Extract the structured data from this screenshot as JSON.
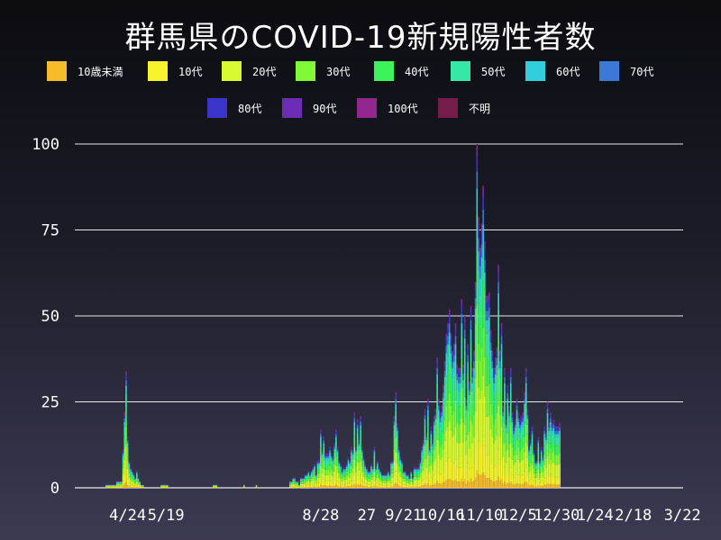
{
  "chart_data": {
    "type": "bar",
    "stacked": true,
    "title": "群馬県のCOVID-19新規陽性者数",
    "xlabel": "",
    "ylabel": "",
    "ylim": [
      0,
      100
    ],
    "y_ticks": [
      0,
      25,
      50,
      75,
      100
    ],
    "grid": true,
    "legend_position": "top",
    "x_tick_labels": [
      "4/24",
      "5/19",
      "8/28",
      "27",
      "9/21",
      "10/16",
      "11/10",
      "12/5",
      "12/30",
      "1/24",
      "2/18",
      "3/22"
    ],
    "x_tick_days": [
      34,
      59,
      160,
      190,
      214,
      239,
      264,
      289,
      314,
      339,
      364,
      396
    ],
    "x_start": "3/21",
    "day_count": 397,
    "series": [
      {
        "name": "10歳未満",
        "color": "#f6bc2a"
      },
      {
        "name": "10代",
        "color": "#f7f42c"
      },
      {
        "name": "20代",
        "color": "#d8fb30"
      },
      {
        "name": "30代",
        "color": "#7ffa36"
      },
      {
        "name": "40代",
        "color": "#3cf35a"
      },
      {
        "name": "50代",
        "color": "#35e8a6"
      },
      {
        "name": "60代",
        "color": "#31cfdb"
      },
      {
        "name": "70代",
        "color": "#3a79d6"
      },
      {
        "name": "80代",
        "color": "#3c33c8"
      },
      {
        "name": "90代",
        "color": "#6d2cb4"
      },
      {
        "name": "100代",
        "color": "#92268f"
      },
      {
        "name": "不明",
        "color": "#741c4a"
      }
    ],
    "daily_totals_approx": [
      [
        20,
        1
      ],
      [
        25,
        1
      ],
      [
        27,
        2
      ],
      [
        30,
        2
      ],
      [
        33,
        34
      ],
      [
        34,
        15
      ],
      [
        35,
        8
      ],
      [
        36,
        6
      ],
      [
        37,
        5
      ],
      [
        38,
        4
      ],
      [
        40,
        5
      ],
      [
        42,
        2
      ],
      [
        44,
        1
      ],
      [
        56,
        1
      ],
      [
        60,
        1
      ],
      [
        90,
        1
      ],
      [
        92,
        1
      ],
      [
        110,
        1
      ],
      [
        118,
        1
      ],
      [
        140,
        2
      ],
      [
        142,
        3
      ],
      [
        145,
        2
      ],
      [
        148,
        3
      ],
      [
        150,
        4
      ],
      [
        152,
        5
      ],
      [
        155,
        6
      ],
      [
        158,
        8
      ],
      [
        160,
        17
      ],
      [
        162,
        15
      ],
      [
        164,
        10
      ],
      [
        166,
        12
      ],
      [
        168,
        9
      ],
      [
        170,
        17
      ],
      [
        172,
        8
      ],
      [
        175,
        6
      ],
      [
        178,
        9
      ],
      [
        180,
        12
      ],
      [
        182,
        22
      ],
      [
        184,
        20
      ],
      [
        186,
        21
      ],
      [
        188,
        9
      ],
      [
        190,
        6
      ],
      [
        192,
        5
      ],
      [
        195,
        12
      ],
      [
        198,
        6
      ],
      [
        200,
        4
      ],
      [
        204,
        5
      ],
      [
        206,
        8
      ],
      [
        209,
        28
      ],
      [
        211,
        12
      ],
      [
        213,
        8
      ],
      [
        216,
        4
      ],
      [
        219,
        5
      ],
      [
        222,
        6
      ],
      [
        225,
        8
      ],
      [
        228,
        23
      ],
      [
        230,
        26
      ],
      [
        233,
        14
      ],
      [
        236,
        38
      ],
      [
        238,
        22
      ],
      [
        240,
        30
      ],
      [
        242,
        45
      ],
      [
        244,
        52
      ],
      [
        246,
        40
      ],
      [
        248,
        48
      ],
      [
        250,
        35
      ],
      [
        252,
        55
      ],
      [
        254,
        50
      ],
      [
        256,
        42
      ],
      [
        258,
        53
      ],
      [
        260,
        40
      ],
      [
        262,
        100
      ],
      [
        264,
        70
      ],
      [
        266,
        88
      ],
      [
        268,
        56
      ],
      [
        270,
        57
      ],
      [
        272,
        40
      ],
      [
        274,
        38
      ],
      [
        276,
        65
      ],
      [
        278,
        48
      ],
      [
        280,
        35
      ],
      [
        282,
        30
      ],
      [
        284,
        35
      ],
      [
        286,
        18
      ],
      [
        288,
        26
      ],
      [
        290,
        20
      ],
      [
        292,
        22
      ],
      [
        294,
        35
      ],
      [
        296,
        12
      ],
      [
        298,
        18
      ],
      [
        300,
        8
      ],
      [
        302,
        15
      ],
      [
        304,
        12
      ],
      [
        306,
        18
      ],
      [
        308,
        25
      ],
      [
        310,
        22
      ],
      [
        312,
        20
      ],
      [
        314,
        18
      ],
      [
        316,
        19
      ]
    ]
  }
}
